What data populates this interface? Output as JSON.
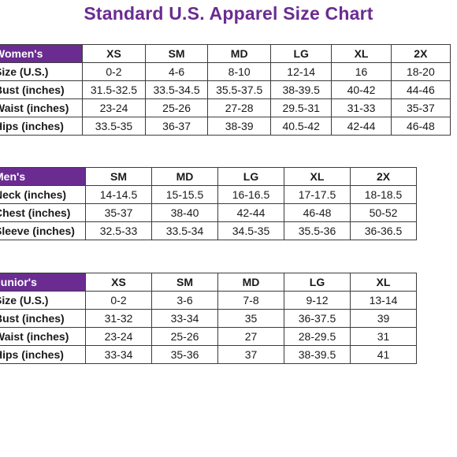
{
  "title": "Standard U.S. Apparel Size Chart",
  "women": {
    "category": "Women's",
    "sizes": [
      "XS",
      "SM",
      "MD",
      "LG",
      "XL",
      "2X"
    ],
    "rows": [
      {
        "label": "Size (U.S.)",
        "values": [
          "0-2",
          "4-6",
          "8-10",
          "12-14",
          "16",
          "18-20"
        ]
      },
      {
        "label": "Bust (inches)",
        "values": [
          "31.5-32.5",
          "33.5-34.5",
          "35.5-37.5",
          "38-39.5",
          "40-42",
          "44-46"
        ]
      },
      {
        "label": "Waist (inches)",
        "values": [
          "23-24",
          "25-26",
          "27-28",
          "29.5-31",
          "31-33",
          "35-37"
        ]
      },
      {
        "label": "Hips (inches)",
        "values": [
          "33.5-35",
          "36-37",
          "38-39",
          "40.5-42",
          "42-44",
          "46-48"
        ]
      }
    ]
  },
  "men": {
    "category": "Men's",
    "sizes": [
      "SM",
      "MD",
      "LG",
      "XL",
      "2X"
    ],
    "rows": [
      {
        "label": "Neck (inches)",
        "values": [
          "14-14.5",
          "15-15.5",
          "16-16.5",
          "17-17.5",
          "18-18.5"
        ]
      },
      {
        "label": "Chest (inches)",
        "values": [
          "35-37",
          "38-40",
          "42-44",
          "46-48",
          "50-52"
        ]
      },
      {
        "label": "Sleeve (inches)",
        "values": [
          "32.5-33",
          "33.5-34",
          "34.5-35",
          "35.5-36",
          "36-36.5"
        ]
      }
    ]
  },
  "junior": {
    "category": "Junior's",
    "sizes": [
      "XS",
      "SM",
      "MD",
      "LG",
      "XL"
    ],
    "rows": [
      {
        "label": "Size (U.S.)",
        "values": [
          "0-2",
          "3-6",
          "7-8",
          "9-12",
          "13-14"
        ]
      },
      {
        "label": "Bust (inches)",
        "values": [
          "31-32",
          "33-34",
          "35",
          "36-37.5",
          "39"
        ]
      },
      {
        "label": "Waist (inches)",
        "values": [
          "23-24",
          "25-26",
          "27",
          "28-29.5",
          "31"
        ]
      },
      {
        "label": "Hips (inches)",
        "values": [
          "33-34",
          "35-36",
          "37",
          "38-39.5",
          "41"
        ]
      }
    ]
  }
}
